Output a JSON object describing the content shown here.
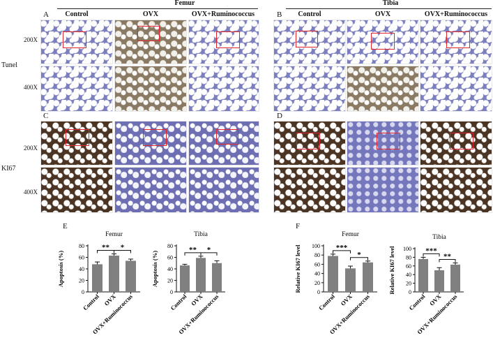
{
  "figure": {
    "panel_letters": [
      "A",
      "B",
      "C",
      "D",
      "E",
      "F"
    ],
    "top_groups": [
      "Femur",
      "Tibia"
    ],
    "column_headers": [
      "Control",
      "OVX",
      "OVX+Ruminococcus"
    ],
    "row_labels": {
      "tunel": "Tunel",
      "ki67": "KI67"
    },
    "magnifications": {
      "low": "200X",
      "high": "400X"
    },
    "colors": {
      "bar": "#808080",
      "box": "#e0252c"
    }
  },
  "chart_data": [
    {
      "panel": "E",
      "type": "bar",
      "title": "Femur",
      "ylabel": "Apoptosis (%)",
      "ylim": [
        0,
        80
      ],
      "yticks": [
        0,
        20,
        40,
        60,
        80
      ],
      "categories": [
        "Control",
        "OVX",
        "OVX+Ruminococcus"
      ],
      "values": [
        48,
        63,
        54
      ],
      "errors": [
        4,
        3,
        3
      ],
      "significance": [
        {
          "from": 0,
          "to": 1,
          "label": "**"
        },
        {
          "from": 1,
          "to": 2,
          "label": "*"
        }
      ]
    },
    {
      "panel": "E",
      "type": "bar",
      "title": "Tibia",
      "ylabel": "Apoptosis (%)",
      "ylim": [
        0,
        80
      ],
      "yticks": [
        0,
        20,
        40,
        60,
        80
      ],
      "categories": [
        "Control",
        "OVX",
        "OVX+Ruminococcus"
      ],
      "values": [
        46,
        59,
        50
      ],
      "errors": [
        2,
        3,
        4
      ],
      "significance": [
        {
          "from": 0,
          "to": 1,
          "label": "**"
        },
        {
          "from": 1,
          "to": 2,
          "label": "*"
        }
      ]
    },
    {
      "panel": "F",
      "type": "bar",
      "title": "Femur",
      "ylabel": "Relative KI67 level",
      "ylim": [
        0,
        100
      ],
      "yticks": [
        0,
        20,
        40,
        60,
        80,
        100
      ],
      "categories": [
        "Control",
        "OVX",
        "OVX+Ruminococcus"
      ],
      "values": [
        78,
        51,
        64
      ],
      "errors": [
        4,
        5,
        3
      ],
      "significance": [
        {
          "from": 0,
          "to": 1,
          "label": "***"
        },
        {
          "from": 1,
          "to": 2,
          "label": "*"
        }
      ]
    },
    {
      "panel": "F",
      "type": "bar",
      "title": "Tibia",
      "ylabel": "Relative KI67 level",
      "ylim": [
        0,
        100
      ],
      "yticks": [
        0,
        20,
        40,
        60,
        80,
        100
      ],
      "categories": [
        "Control",
        "OVX",
        "OVX+Ruminococcus"
      ],
      "values": [
        76,
        50,
        63
      ],
      "errors": [
        4,
        6,
        4
      ],
      "significance": [
        {
          "from": 0,
          "to": 1,
          "label": "***"
        },
        {
          "from": 1,
          "to": 2,
          "label": "**"
        }
      ]
    }
  ]
}
